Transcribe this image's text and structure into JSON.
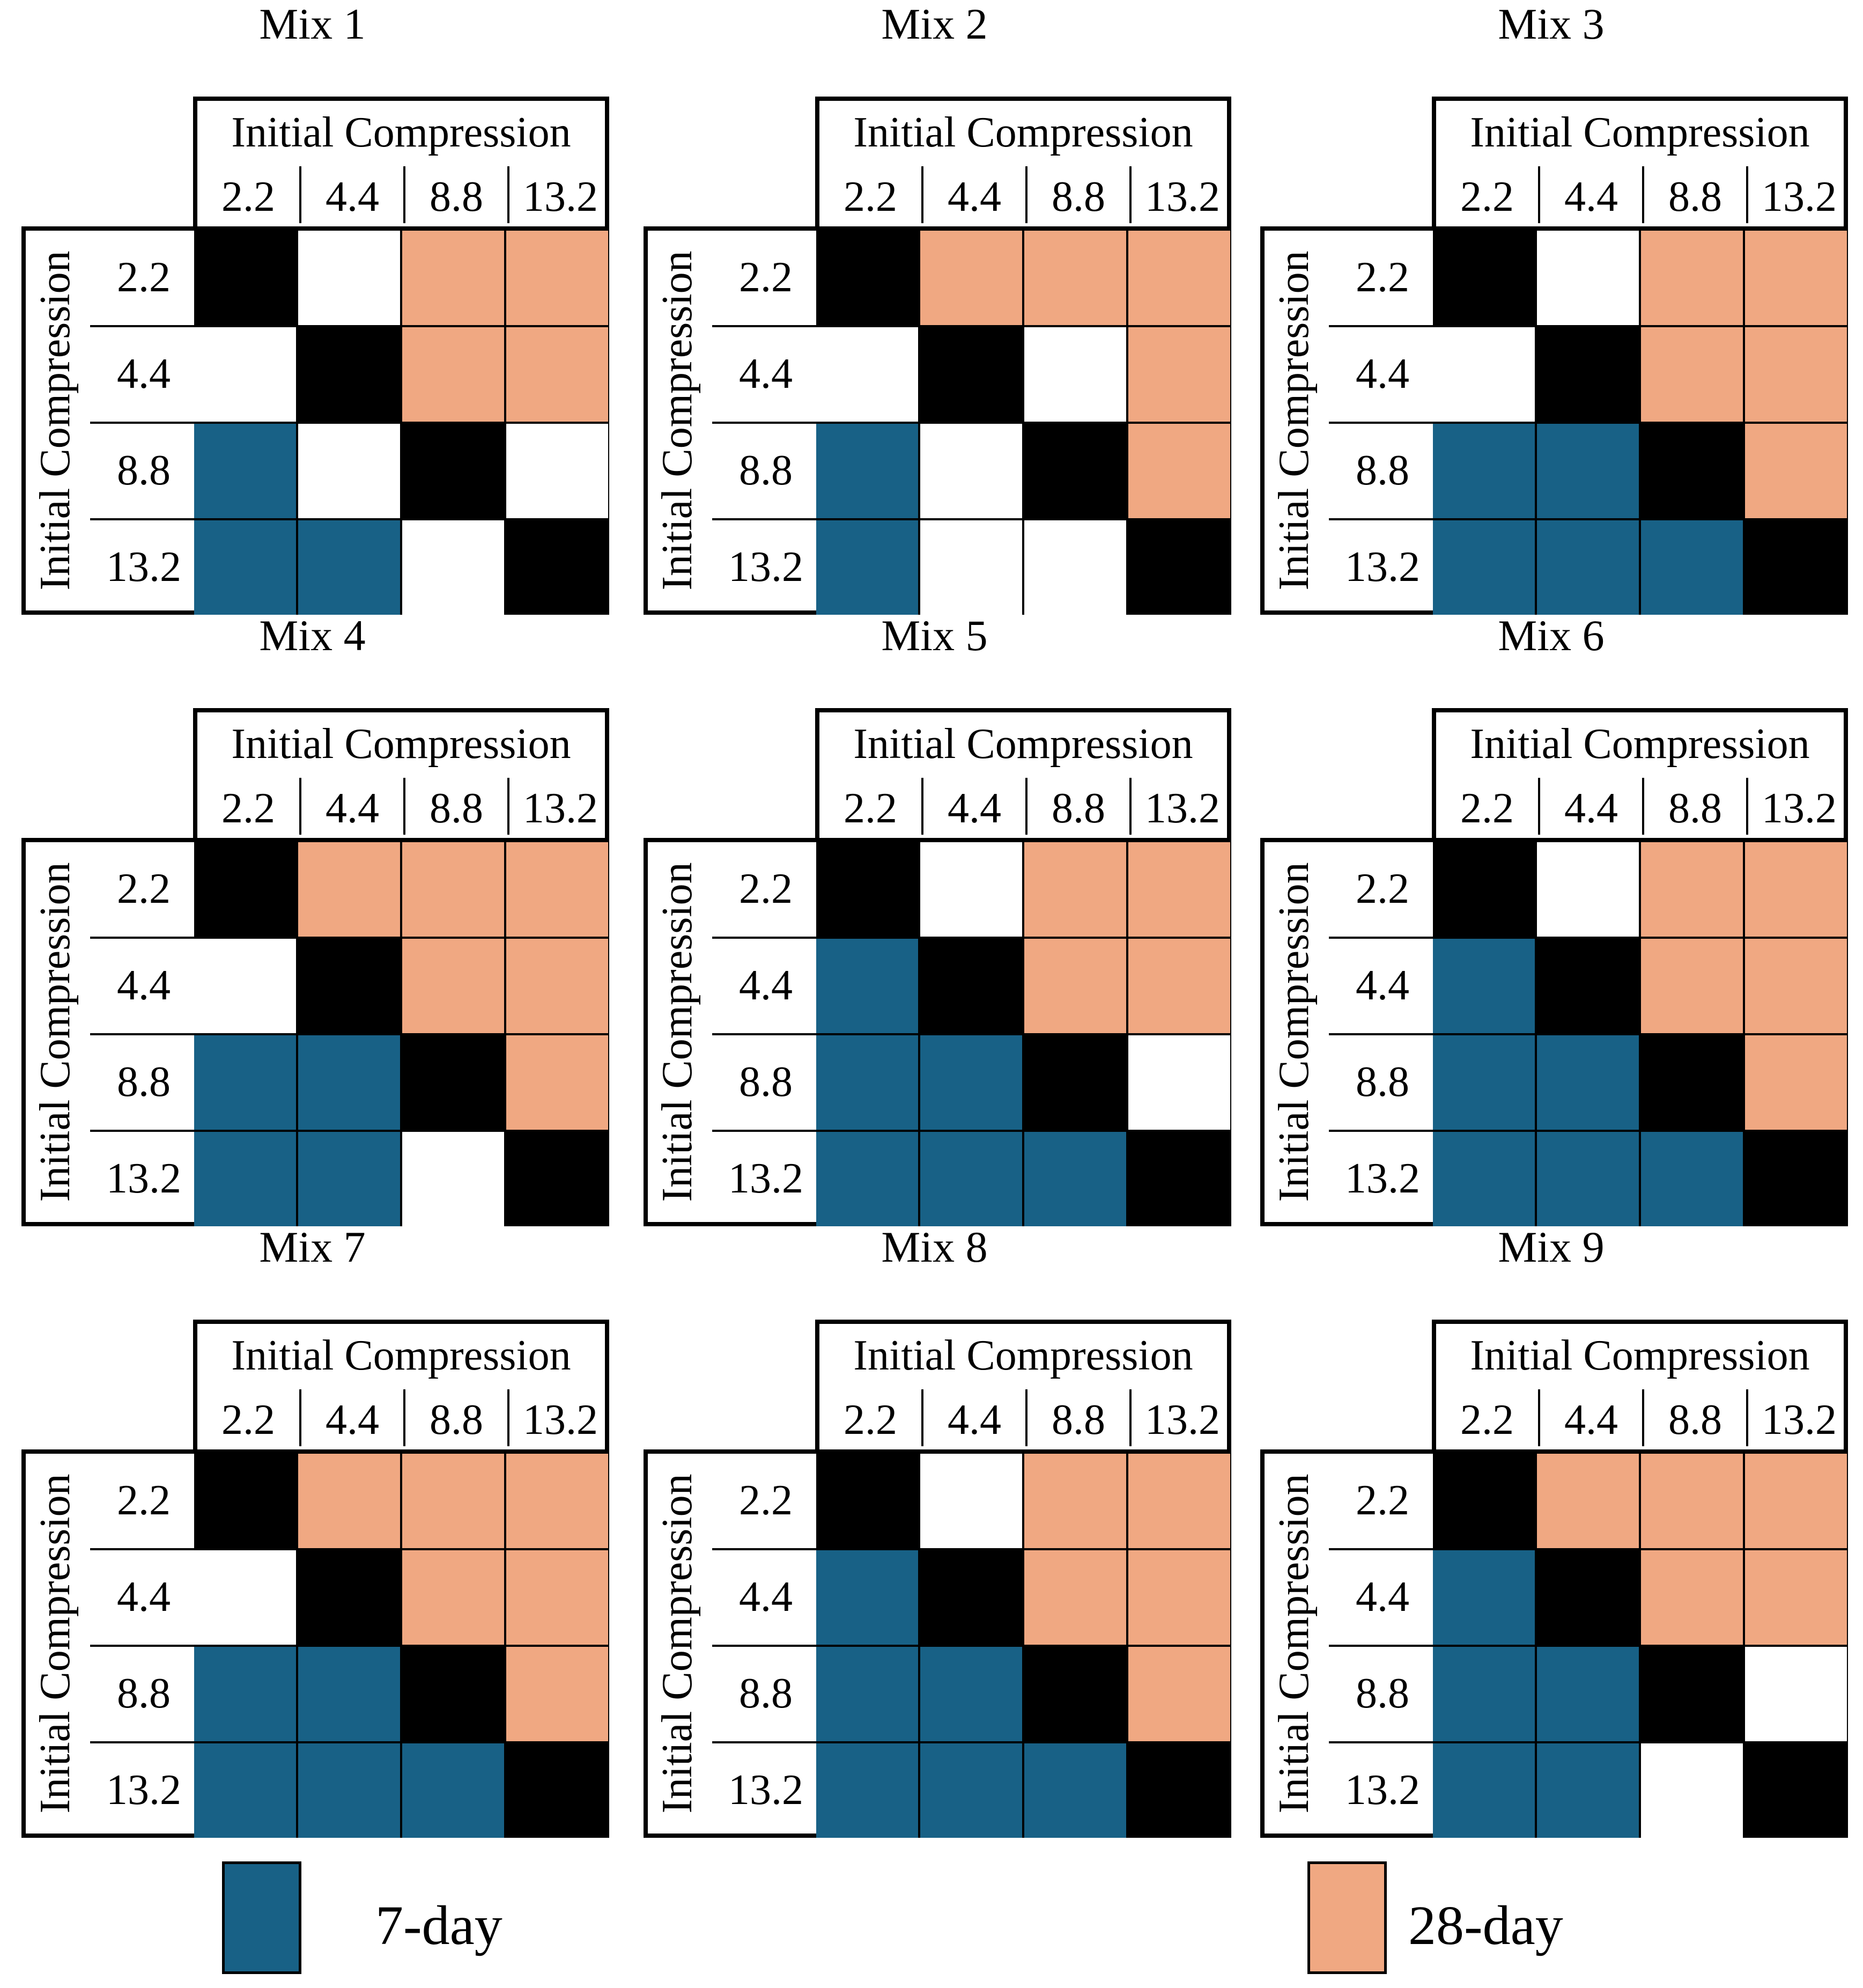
{
  "chart_data": {
    "type": "heatmap",
    "axis_label": "Initial Compression",
    "ticks": [
      "2.2",
      "4.4",
      "8.8",
      "13.2"
    ],
    "colors": {
      "diag": "#000000",
      "none": "#ffffff",
      "7d": "#186186",
      "28d": "#f0a882"
    },
    "legend": [
      {
        "key": "7d",
        "label": "7-day"
      },
      {
        "key": "28d",
        "label": "28-day"
      }
    ],
    "panels": [
      {
        "title": "Mix 1",
        "grid": [
          [
            "diag",
            "none",
            "28d",
            "28d"
          ],
          [
            "none",
            "diag",
            "28d",
            "28d"
          ],
          [
            "7d",
            "none",
            "diag",
            "none"
          ],
          [
            "7d",
            "7d",
            "none",
            "diag"
          ]
        ]
      },
      {
        "title": "Mix 2",
        "grid": [
          [
            "diag",
            "28d",
            "28d",
            "28d"
          ],
          [
            "none",
            "diag",
            "none",
            "28d"
          ],
          [
            "7d",
            "none",
            "diag",
            "28d"
          ],
          [
            "7d",
            "none",
            "none",
            "diag"
          ]
        ]
      },
      {
        "title": "Mix 3",
        "grid": [
          [
            "diag",
            "none",
            "28d",
            "28d"
          ],
          [
            "none",
            "diag",
            "28d",
            "28d"
          ],
          [
            "7d",
            "7d",
            "diag",
            "28d"
          ],
          [
            "7d",
            "7d",
            "7d",
            "diag"
          ]
        ]
      },
      {
        "title": "Mix 4",
        "grid": [
          [
            "diag",
            "28d",
            "28d",
            "28d"
          ],
          [
            "none",
            "diag",
            "28d",
            "28d"
          ],
          [
            "7d",
            "7d",
            "diag",
            "28d"
          ],
          [
            "7d",
            "7d",
            "none",
            "diag"
          ]
        ]
      },
      {
        "title": "Mix 5",
        "grid": [
          [
            "diag",
            "none",
            "28d",
            "28d"
          ],
          [
            "7d",
            "diag",
            "28d",
            "28d"
          ],
          [
            "7d",
            "7d",
            "diag",
            "none"
          ],
          [
            "7d",
            "7d",
            "7d",
            "diag"
          ]
        ]
      },
      {
        "title": "Mix 6",
        "grid": [
          [
            "diag",
            "none",
            "28d",
            "28d"
          ],
          [
            "7d",
            "diag",
            "28d",
            "28d"
          ],
          [
            "7d",
            "7d",
            "diag",
            "28d"
          ],
          [
            "7d",
            "7d",
            "7d",
            "diag"
          ]
        ]
      },
      {
        "title": "Mix 7",
        "grid": [
          [
            "diag",
            "28d",
            "28d",
            "28d"
          ],
          [
            "none",
            "diag",
            "28d",
            "28d"
          ],
          [
            "7d",
            "7d",
            "diag",
            "28d"
          ],
          [
            "7d",
            "7d",
            "7d",
            "diag"
          ]
        ]
      },
      {
        "title": "Mix 8",
        "grid": [
          [
            "diag",
            "none",
            "28d",
            "28d"
          ],
          [
            "7d",
            "diag",
            "28d",
            "28d"
          ],
          [
            "7d",
            "7d",
            "diag",
            "28d"
          ],
          [
            "7d",
            "7d",
            "7d",
            "diag"
          ]
        ]
      },
      {
        "title": "Mix 9",
        "grid": [
          [
            "diag",
            "28d",
            "28d",
            "28d"
          ],
          [
            "7d",
            "diag",
            "28d",
            "28d"
          ],
          [
            "7d",
            "7d",
            "diag",
            "none"
          ],
          [
            "7d",
            "7d",
            "none",
            "diag"
          ]
        ]
      }
    ]
  }
}
